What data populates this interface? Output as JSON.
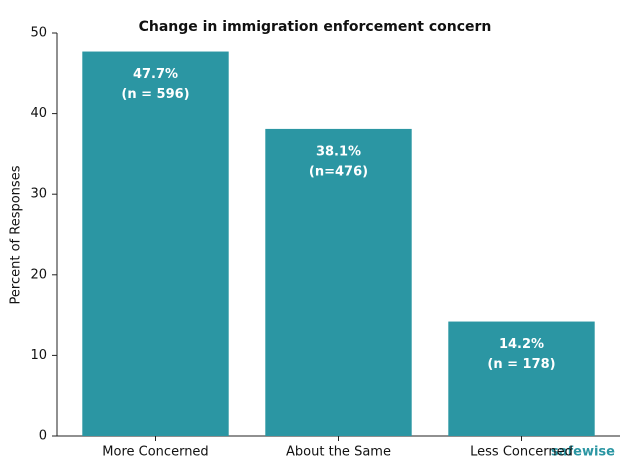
{
  "chart_data": {
    "type": "bar",
    "title": "Change in immigration enforcement concern",
    "y_label": "Percent of Responses",
    "categories": [
      "More Concerned",
      "About the Same",
      "Less Concerned"
    ],
    "values": [
      47.7,
      38.1,
      14.2
    ],
    "value_labels": [
      "47.7%",
      "38.1%",
      "14.2%"
    ],
    "count_labels": [
      "(n = 596)",
      "(n=476)",
      "(n = 178)"
    ],
    "color": "#2b96a3",
    "ylim": [
      0,
      50
    ],
    "yticks": [
      0,
      10,
      20,
      30,
      40,
      50
    ],
    "grid": false,
    "watermark": "safewise"
  }
}
